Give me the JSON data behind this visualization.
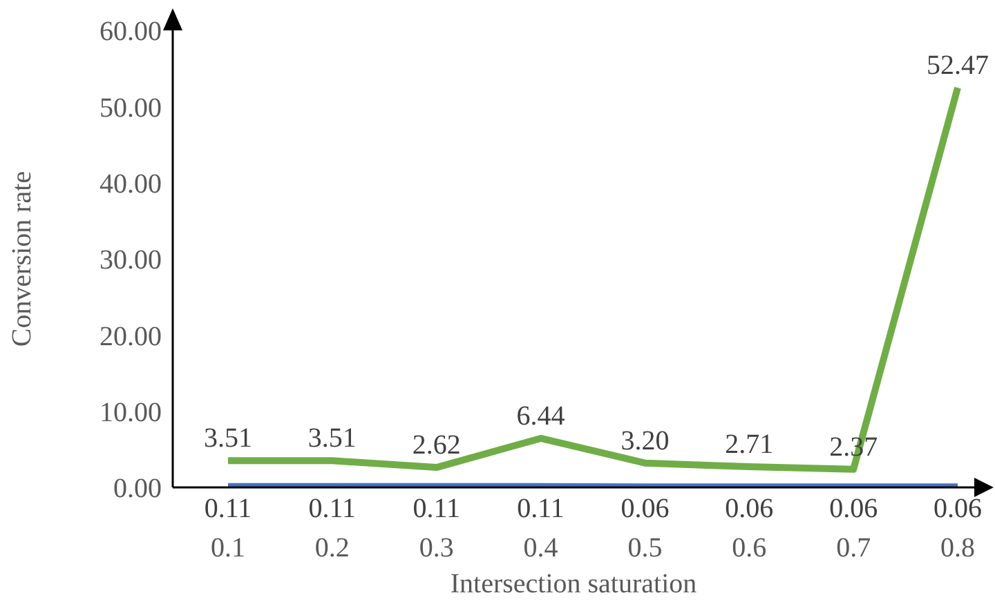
{
  "chart_data": {
    "type": "line",
    "xlabel": "Intersection saturation",
    "ylabel": "Conversion rate",
    "categories": [
      "0.1",
      "0.2",
      "0.3",
      "0.4",
      "0.5",
      "0.6",
      "0.7",
      "0.8"
    ],
    "series": [
      {
        "color": "#4472c4",
        "values": [
          0.11,
          0.11,
          0.11,
          0.11,
          0.06,
          0.06,
          0.06,
          0.06
        ],
        "value_labels": [
          "0.11",
          "0.11",
          "0.11",
          "0.11",
          "0.06",
          "0.06",
          "0.06",
          "0.06"
        ]
      },
      {
        "color": "#70ad47",
        "values": [
          3.51,
          3.51,
          2.62,
          6.44,
          3.2,
          2.71,
          2.37,
          52.47
        ],
        "value_labels": [
          "3.51",
          "3.51",
          "2.62",
          "6.44",
          "3.20",
          "2.71",
          "2.37",
          "52.47"
        ]
      }
    ],
    "ylim": [
      0,
      60
    ],
    "yticks": [
      {
        "value": 0,
        "label": "0.00"
      },
      {
        "value": 10,
        "label": "10.00"
      },
      {
        "value": 20,
        "label": "20.00"
      },
      {
        "value": 30,
        "label": "30.00"
      },
      {
        "value": 40,
        "label": "40.00"
      },
      {
        "value": 50,
        "label": "50.00"
      },
      {
        "value": 60,
        "label": "60.00"
      }
    ],
    "grid": false,
    "legend": false,
    "marker": "none",
    "line_style": "solid"
  }
}
